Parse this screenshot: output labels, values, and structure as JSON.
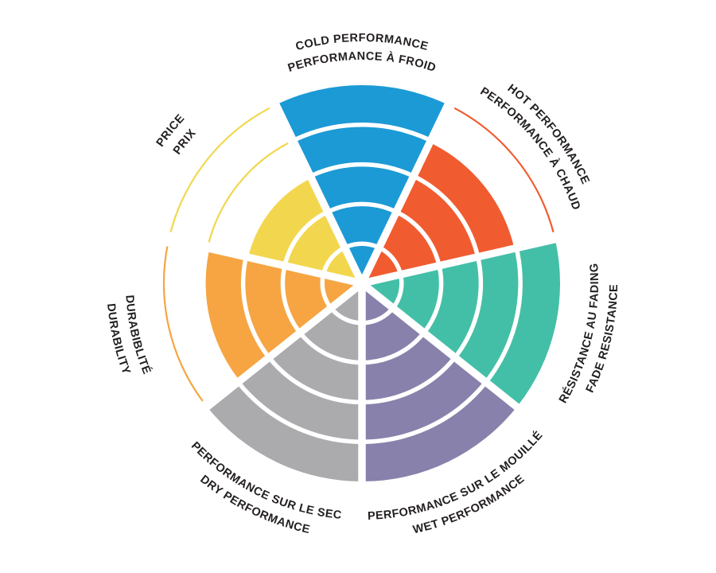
{
  "page": {
    "background": "#FFFFFF"
  },
  "chart_data": {
    "type": "polar-wheel",
    "description_of_encoding": "7 circular sectors, each filled from the center outward over a 5-ring scale; unfilled ring levels are shown as thin colored outline arcs",
    "max_rings": 5,
    "scale": {
      "min": 0,
      "max": 5
    },
    "text_color": "#231F20",
    "divider_color": "#FFFFFF",
    "categories": [
      {
        "id": "cold-performance",
        "line1": "COLD PERFORMANCE",
        "line2": "PERFORMANCE À FROID",
        "value": 5,
        "color": "#1C9AD6",
        "label_side": "top"
      },
      {
        "id": "hot-performance",
        "line1": "HOT PERFORMANCE",
        "line2": "PERFORMANCE À CHAUD",
        "value": 4,
        "color": "#F05C30",
        "label_side": "top"
      },
      {
        "id": "fade-resistance",
        "line1": "RÉSISTANCE AU FADING",
        "line2": "FADE RESISTANCE",
        "value": 5,
        "color": "#44BFA7",
        "label_side": "bottom"
      },
      {
        "id": "wet-performance",
        "line1": "PERFORMANCE SUR LE MOUILLÉ",
        "line2": "WET PERFORMANCE",
        "value": 5,
        "color": "#8881AB",
        "label_side": "bottom"
      },
      {
        "id": "dry-performance",
        "line1": "PERFORMANCE SUR LE SEC",
        "line2": "DRY PERFORMANCE",
        "value": 5,
        "color": "#ABAAAD",
        "label_side": "bottom"
      },
      {
        "id": "durability",
        "line1": "DURABIBLITÉ",
        "line2": "DURABILITY",
        "value": 4,
        "color": "#F6A542",
        "label_side": "bottom"
      },
      {
        "id": "price",
        "line1": "PRICE",
        "line2": "PRIX",
        "value": 3,
        "color": "#F2D74E",
        "label_side": "top"
      }
    ]
  }
}
